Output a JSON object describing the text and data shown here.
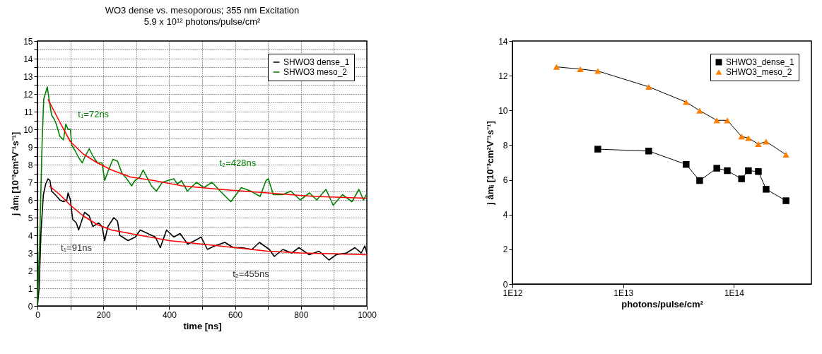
{
  "chart_data": [
    {
      "type": "line",
      "title": "WO3 dense vs. mesoporous; 355 nm Excitation",
      "subtitle": "5.9 x 10¹² photons/pulse/cm²",
      "xlabel": "time [ns]",
      "ylabel": "j åmᵢ [10⁻³cm²V⁻¹s⁻¹]",
      "xlim": [
        0,
        1000
      ],
      "ylim": [
        0,
        15
      ],
      "xticks": [
        0,
        {
          "value": 100,
          "label": null
        },
        200,
        {
          "value": 300,
          "label": null
        },
        400,
        {
          "value": 500,
          "label": null
        },
        600,
        {
          "value": 700,
          "label": null
        },
        800,
        {
          "value": 900,
          "label": null
        },
        1000
      ],
      "yticks": [
        0,
        {
          "value": 0.5,
          "label": null
        },
        1,
        {
          "value": 1.5,
          "label": null
        },
        2,
        {
          "value": 2.5,
          "label": null
        },
        3,
        {
          "value": 3.5,
          "label": null
        },
        4,
        {
          "value": 4.5,
          "label": null
        },
        5,
        {
          "value": 5.5,
          "label": null
        },
        6,
        {
          "value": 6.5,
          "label": null
        },
        7,
        {
          "value": 7.5,
          "label": null
        },
        8,
        {
          "value": 8.5,
          "label": null
        },
        9,
        {
          "value": 9.5,
          "label": null
        },
        10,
        {
          "value": 10.5,
          "label": null
        },
        11,
        {
          "value": 11.5,
          "label": null
        },
        12,
        {
          "value": 12.5,
          "label": null
        },
        13,
        {
          "value": 13.5,
          "label": null
        },
        14,
        {
          "value": 14.5,
          "label": null
        },
        15
      ],
      "grid": true,
      "legend": "top right",
      "series": [
        {
          "name": "SHWO3 dense_1",
          "color": "#000000",
          "x": [
            0,
            5,
            11,
            18,
            25,
            32,
            38,
            43,
            54,
            68,
            79,
            89,
            93,
            100,
            107,
            118,
            125,
            143,
            157,
            168,
            186,
            196,
            204,
            214,
            232,
            243,
            250,
            275,
            297,
            312,
            335,
            358,
            373,
            392,
            414,
            433,
            456,
            478,
            497,
            516,
            538,
            569,
            595,
            621,
            651,
            674,
            704,
            719,
            745,
            772,
            794,
            825,
            855,
            885,
            907,
            938,
            964,
            983,
            994,
            1000
          ],
          "values": [
            0,
            1,
            4.3,
            6.3,
            6.9,
            7.2,
            7.1,
            6.5,
            6.3,
            6.0,
            5.9,
            6.0,
            6.4,
            6.0,
            4.9,
            4.7,
            4.3,
            5.3,
            5.1,
            4.5,
            4.7,
            4.5,
            3.7,
            4.5,
            5.0,
            4.8,
            4.0,
            3.7,
            3.9,
            4.3,
            4.1,
            3.9,
            3.3,
            4.3,
            3.9,
            4.1,
            3.5,
            3.7,
            3.9,
            3.2,
            3.4,
            3.6,
            3.3,
            3.3,
            3.2,
            3.6,
            3.2,
            2.8,
            3.2,
            3.0,
            3.3,
            2.9,
            3.1,
            2.6,
            2.9,
            3.0,
            3.3,
            3.0,
            3.4,
            3.0
          ]
        },
        {
          "name": "SHWO3 meso_2",
          "color": "#008000",
          "x": [
            0,
            7,
            14,
            19,
            30,
            36,
            43,
            50,
            57,
            68,
            79,
            86,
            93,
            100,
            104,
            114,
            125,
            136,
            143,
            157,
            168,
            182,
            196,
            204,
            214,
            229,
            243,
            257,
            271,
            286,
            296,
            311,
            321,
            332,
            346,
            361,
            379,
            396,
            414,
            425,
            437,
            455,
            483,
            505,
            530,
            555,
            587,
            619,
            648,
            676,
            694,
            701,
            716,
            744,
            769,
            798,
            826,
            848,
            876,
            898,
            926,
            955,
            976,
            990,
            998
          ],
          "values": [
            0,
            3.9,
            9.2,
            11.7,
            12.4,
            11.6,
            10.8,
            10.6,
            10.3,
            9.6,
            9.4,
            10.3,
            10.0,
            10.0,
            9.1,
            8.8,
            8.4,
            8.1,
            8.4,
            8.9,
            8.5,
            8.1,
            8.1,
            7.1,
            7.6,
            8.3,
            8.2,
            7.5,
            7.2,
            6.8,
            7.1,
            7.3,
            7.7,
            7.3,
            6.8,
            6.5,
            7.0,
            7.1,
            7.2,
            6.9,
            7.1,
            6.5,
            7.0,
            6.7,
            7.0,
            6.5,
            5.9,
            6.7,
            6.5,
            6.2,
            7.1,
            7.2,
            6.3,
            6.3,
            6.5,
            6.0,
            6.4,
            6.0,
            6.6,
            5.7,
            6.3,
            5.9,
            6.6,
            6.0,
            6.3
          ]
        },
        {
          "color": "#ff0000",
          "x": [
            36,
            68,
            100,
            139,
            182,
            225,
            311,
            400,
            500,
            600,
            700,
            800,
            1000
          ],
          "values": [
            6.8,
            6.3,
            5.7,
            5.1,
            4.6,
            4.3,
            4.0,
            3.7,
            3.5,
            3.3,
            3.1,
            3.0,
            2.9
          ]
        },
        {
          "color": "#ff0000",
          "x": [
            32,
            68,
            100,
            139,
            182,
            225,
            282,
            354,
            439,
            555,
            698,
            841,
            998
          ],
          "values": [
            11.7,
            10.4,
            9.3,
            8.6,
            8.1,
            7.7,
            7.3,
            7.1,
            6.8,
            6.6,
            6.4,
            6.2,
            6.1
          ]
        }
      ],
      "annotations": [
        "t₁=72ns",
        "t₂=428ns",
        "t₁=91ns",
        "t₂=455ns"
      ]
    },
    {
      "type": "line",
      "xlabel": "photons/pulse/cm²",
      "ylabel": "j åmᵢ [10⁻³cm²V⁻¹s⁻¹]",
      "log": "x",
      "xlim": [
        1000000000000.0,
        500000000000000.0
      ],
      "ylim": [
        0,
        14
      ],
      "xticks": [
        {
          "value": 1000000000000.0,
          "label": "1E12"
        },
        {
          "value": 10000000000000.0,
          "label": "1E13"
        },
        {
          "value": 100000000000000.0,
          "label": "1E14"
        }
      ],
      "yticks": [
        0,
        2,
        4,
        6,
        8,
        10,
        12,
        14
      ],
      "legend": "top right",
      "series": [
        {
          "name": "SHWO3_dense_1",
          "color": "#000000",
          "marker": "square",
          "x": [
            5900000000000.0,
            17000000000000.0,
            37000000000000.0,
            49000000000000.0,
            70000000000000.0,
            87000000000000.0,
            117000000000000.0,
            135000000000000.0,
            166000000000000.0,
            195000000000000.0,
            295000000000000.0
          ],
          "values": [
            7.77,
            7.66,
            6.89,
            5.96,
            6.67,
            6.53,
            6.06,
            6.53,
            6.48,
            5.46,
            4.8
          ]
        },
        {
          "name": "SHWO3_meso_2",
          "color": "#ff8000",
          "marker": "triangle",
          "x": [
            2500000000000.0,
            4100000000000.0,
            5900000000000.0,
            17000000000000.0,
            37000000000000.0,
            49000000000000.0,
            70000000000000.0,
            87000000000000.0,
            117000000000000.0,
            135000000000000.0,
            166000000000000.0,
            195000000000000.0,
            295000000000000.0
          ],
          "values": [
            12.51,
            12.38,
            12.27,
            11.36,
            10.48,
            9.99,
            9.43,
            9.43,
            8.5,
            8.41,
            8.06,
            8.21,
            7.45
          ]
        }
      ]
    }
  ]
}
